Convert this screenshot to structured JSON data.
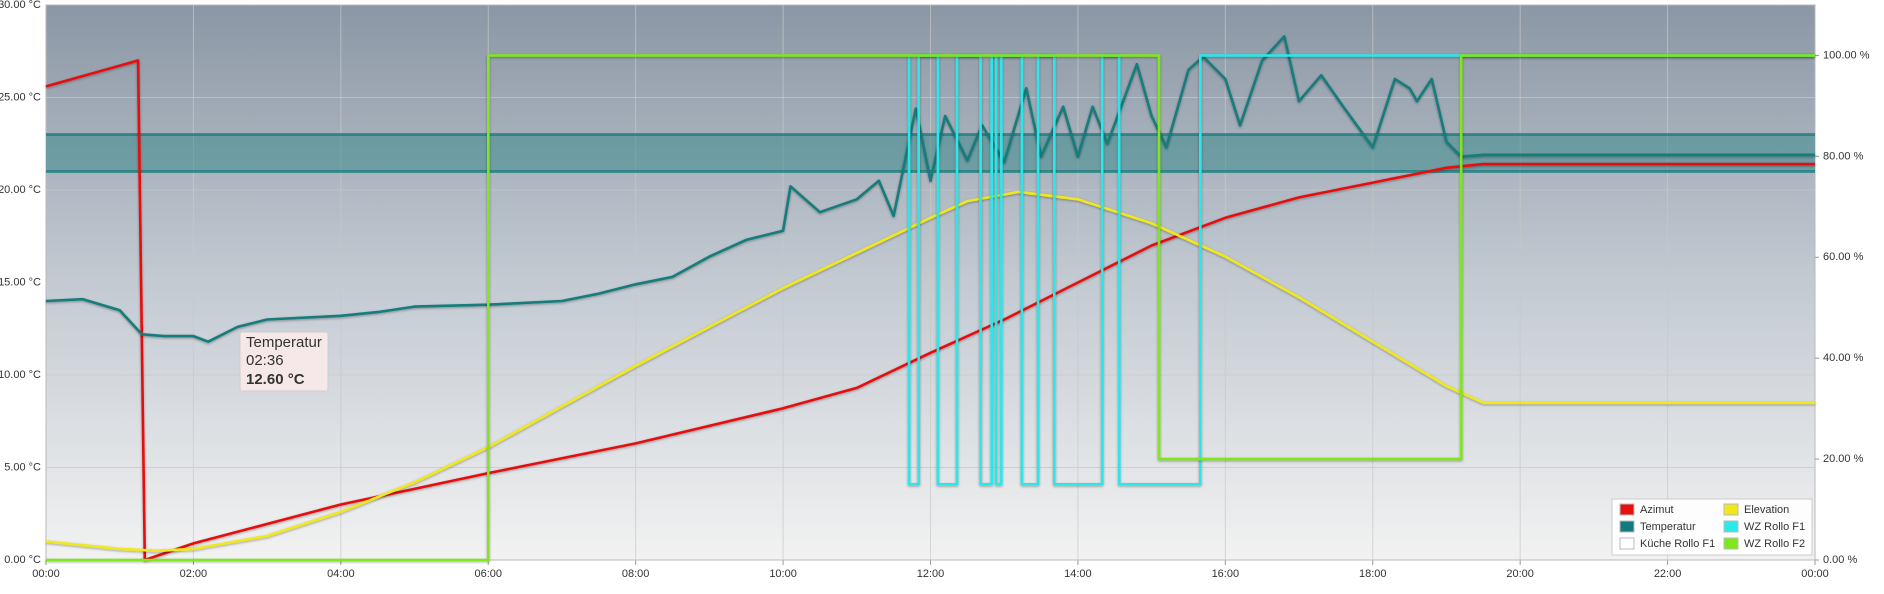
{
  "chart_data": {
    "type": "line",
    "xlim": [
      0,
      24
    ],
    "xticks": [
      {
        "value": 0,
        "label": "00:00"
      },
      {
        "value": 2,
        "label": "02:00"
      },
      {
        "value": 4,
        "label": "04:00"
      },
      {
        "value": 6,
        "label": "06:00"
      },
      {
        "value": 8,
        "label": "08:00"
      },
      {
        "value": 10,
        "label": "10:00"
      },
      {
        "value": 12,
        "label": "12:00"
      },
      {
        "value": 14,
        "label": "14:00"
      },
      {
        "value": 16,
        "label": "16:00"
      },
      {
        "value": 18,
        "label": "18:00"
      },
      {
        "value": 20,
        "label": "20:00"
      },
      {
        "value": 22,
        "label": "22:00"
      },
      {
        "value": 24,
        "label": "00:00"
      }
    ],
    "ylim": [
      0,
      30
    ],
    "yticks": [
      {
        "value": 0,
        "label": "0.00 °C"
      },
      {
        "value": 5,
        "label": "5.00 °C"
      },
      {
        "value": 10,
        "label": "10.00 °C"
      },
      {
        "value": 15,
        "label": "15.00 °C"
      },
      {
        "value": 20,
        "label": "20.00 °C"
      },
      {
        "value": 25,
        "label": "25.00 °C"
      },
      {
        "value": 30,
        "label": "30.00 °C"
      }
    ],
    "y2lim": [
      0,
      110
    ],
    "y2ticks": [
      {
        "value": 0,
        "label": "0.00 %"
      },
      {
        "value": 20,
        "label": "20.00 %"
      },
      {
        "value": 40,
        "label": "40.00 %"
      },
      {
        "value": 60,
        "label": "60.00 %"
      },
      {
        "value": 80,
        "label": "80.00 %"
      },
      {
        "value": 100,
        "label": "100.00 %"
      }
    ],
    "grid": true,
    "legend": "bottom-right",
    "band": {
      "from": 21,
      "to": 23,
      "color": "#137b7b"
    },
    "series": [
      {
        "name": "Azimut",
        "color": "#e8100f",
        "x": [
          0,
          1.25,
          1.34,
          2,
          4,
          6,
          8,
          10,
          11,
          12,
          13,
          14,
          15,
          16,
          17,
          18,
          19,
          19.5,
          24
        ],
        "values": [
          25.6,
          27,
          0,
          0.9,
          3.0,
          4.7,
          6.3,
          8.2,
          9.3,
          11.2,
          13,
          15,
          17,
          18.5,
          19.6,
          20.4,
          21.2,
          21.4,
          21.4
        ]
      },
      {
        "name": "Elevation",
        "color": "#f0e81a",
        "x": [
          0,
          1,
          1.5,
          2,
          3,
          4,
          5,
          6,
          7,
          8,
          9,
          10,
          11,
          12,
          12.5,
          13.2,
          14,
          15,
          16,
          17,
          18,
          19,
          19.5,
          24
        ],
        "values": [
          1.0,
          0.6,
          0.5,
          0.6,
          1.3,
          2.6,
          4.2,
          6.1,
          8.3,
          10.5,
          12.6,
          14.7,
          16.6,
          18.5,
          19.4,
          19.9,
          19.5,
          18.2,
          16.4,
          14.2,
          11.8,
          9.4,
          8.5,
          8.5
        ]
      },
      {
        "name": "Temperatur",
        "color": "#137b7b",
        "x": [
          0,
          0.5,
          1,
          1.3,
          1.6,
          2,
          2.2,
          2.6,
          3,
          4,
          4.5,
          5,
          6,
          7,
          7.5,
          8,
          8.5,
          9,
          9.5,
          10,
          10.1,
          10.5,
          11,
          11.3,
          11.5,
          11.8,
          12,
          12.2,
          12.5,
          12.7,
          13,
          13.3,
          13.5,
          13.8,
          14,
          14.2,
          14.4,
          14.8,
          15,
          15.2,
          15.5,
          15.7,
          16,
          16.2,
          16.5,
          16.8,
          17,
          17.3,
          17.6,
          18,
          18.3,
          18.5,
          18.6,
          18.8,
          19,
          19.2,
          19.5,
          24
        ],
        "values": [
          14.0,
          14.1,
          13.5,
          12.2,
          12.1,
          12.1,
          11.8,
          12.6,
          13.0,
          13.2,
          13.4,
          13.7,
          13.8,
          14.0,
          14.4,
          14.9,
          15.3,
          16.4,
          17.3,
          17.8,
          20.2,
          18.8,
          19.5,
          20.5,
          18.6,
          24.4,
          20.5,
          24.0,
          21.6,
          23.5,
          21.5,
          25.5,
          21.8,
          24.5,
          21.8,
          24.5,
          22.5,
          26.8,
          24.0,
          22.3,
          26.5,
          27.2,
          26.0,
          23.5,
          27.0,
          28.3,
          24.8,
          26.2,
          24.5,
          22.3,
          26.0,
          25.5,
          24.8,
          26.0,
          22.6,
          21.8,
          21.9,
          21.9
        ]
      },
      {
        "name": "WZ Rollo F1",
        "color": "#2be8ea",
        "axis": "y2",
        "x": [
          11.71,
          11.71,
          11.84,
          11.84,
          12.1,
          12.1,
          12.36,
          12.36,
          12.68,
          12.68,
          12.83,
          12.83,
          12.89,
          12.89,
          12.96,
          12.96,
          13.24,
          13.24,
          13.46,
          13.46,
          13.68,
          13.68,
          14.33,
          14.33,
          14.56,
          14.56,
          15.66,
          15.66,
          24
        ],
        "values": [
          100,
          15,
          15,
          100,
          100,
          15,
          15,
          100,
          100,
          15,
          15,
          100,
          100,
          15,
          15,
          100,
          100,
          15,
          15,
          100,
          100,
          15,
          15,
          100,
          100,
          15,
          15,
          100,
          100
        ]
      },
      {
        "name": "Küche Rollo F1",
        "color": "#ffffff",
        "axis": "y2"
      },
      {
        "name": "WZ Rollo F2",
        "color": "#7ee81a",
        "axis": "y2",
        "x": [
          0,
          6,
          6,
          15.1,
          15.1,
          19.2,
          19.2,
          24
        ],
        "values": [
          0,
          0,
          100,
          100,
          20,
          20,
          100,
          100
        ]
      }
    ],
    "tooltip": {
      "title": "Temperatur",
      "time": "02:36",
      "value": "12.60 °C"
    }
  }
}
